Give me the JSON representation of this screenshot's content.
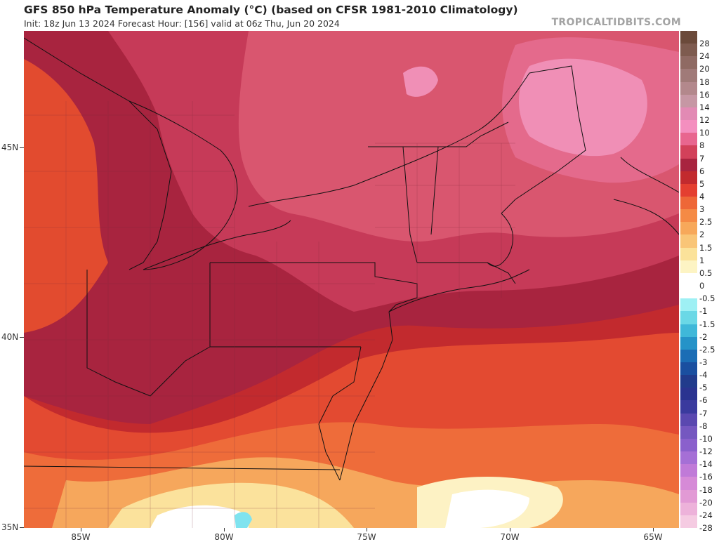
{
  "header": {
    "title": "GFS 850 hPa Temperature Anomaly (°C) (based on CFSR 1981-2010 Climatology)",
    "subtitle": "Init: 18z Jun 13 2024   Forecast Hour: [156]   valid at 06z Thu, Jun 20 2024",
    "watermark": "TROPICALTIDBITS.COM"
  },
  "axes": {
    "lat_labels": [
      "45N",
      "40N",
      "35N"
    ],
    "lon_labels": [
      "85W",
      "80W",
      "75W",
      "70W",
      "65W"
    ]
  },
  "colorbar": {
    "labels": [
      "28",
      "24",
      "20",
      "18",
      "16",
      "14",
      "12",
      "10",
      "8",
      "7",
      "6",
      "5",
      "4",
      "3",
      "2.5",
      "2",
      "1.5",
      "1",
      "0.5",
      "0",
      "-0.5",
      "-1",
      "-1.5",
      "-2",
      "-2.5",
      "-3",
      "-4",
      "-5",
      "-6",
      "-7",
      "-8",
      "-10",
      "-12",
      "-14",
      "-16",
      "-18",
      "-20",
      "-24",
      "-28"
    ],
    "colors": [
      "#6b4a3a",
      "#7e5b4f",
      "#8f6a63",
      "#a07a78",
      "#b3888c",
      "#c697a4",
      "#e28ab4",
      "#f48fbf",
      "#e8668f",
      "#d2415a",
      "#a8243f",
      "#c22a2e",
      "#e43f30",
      "#ee6737",
      "#f58a45",
      "#f7a85a",
      "#f9c577",
      "#fbe29a",
      "#fdf4c4",
      "#ffffff",
      "#ffffff",
      "#9ef0f4",
      "#6ad8e6",
      "#3fb8d9",
      "#2593c8",
      "#1b6db5",
      "#1a4fa0",
      "#213b8c",
      "#2a3390",
      "#3a3a9e",
      "#5a48b0",
      "#7557c0",
      "#8a60cc",
      "#a56fd6",
      "#c07ad8",
      "#d68ad7",
      "#e29ad5",
      "#edb2da",
      "#f5cbe2"
    ]
  },
  "map": {
    "region": "Northeastern United States and Atlantic Canada"
  }
}
